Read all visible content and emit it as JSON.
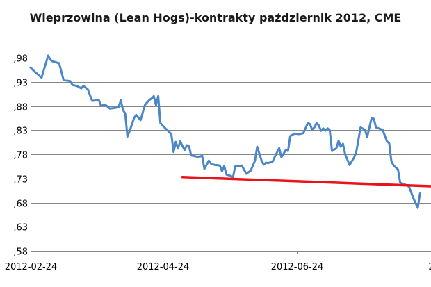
{
  "chart_data": {
    "type": "line",
    "title": "Wieprzowina (Lean Hogs)-kontrakty październik 2012, CME",
    "xlabel": "",
    "ylabel": "",
    "ylim": [
      0.58,
      1.005
    ],
    "y_ticks": [
      ",58",
      ",63",
      ",68",
      ",73",
      ",78",
      ",83",
      ",88",
      ",93",
      ",98"
    ],
    "y_tick_values": [
      0.58,
      0.63,
      0.68,
      0.73,
      0.78,
      0.83,
      0.88,
      0.93,
      0.98
    ],
    "x_ticks": [
      "2012-02-24",
      "2012-04-24",
      "2012-06-24",
      "2"
    ],
    "x_tick_days": [
      0,
      60,
      121,
      182
    ],
    "xlim_days": [
      0,
      182
    ],
    "grid": true,
    "legend": "none",
    "series": [
      {
        "color": "#4a86c8",
        "x_days": [
          0,
          2,
          5,
          8,
          9,
          10,
          13,
          15,
          18,
          19,
          21,
          23,
          24,
          26,
          28,
          30,
          31,
          32,
          34,
          36,
          38,
          40,
          41,
          42,
          43,
          44,
          45,
          47,
          48,
          50,
          52,
          53,
          54,
          55,
          56,
          57,
          58,
          59,
          61,
          62,
          64,
          65,
          66,
          67,
          68,
          70,
          71,
          72,
          73,
          75,
          76,
          78,
          79,
          81,
          82,
          83,
          84,
          86,
          87,
          88,
          89,
          90,
          92,
          93,
          95,
          96,
          98,
          100,
          102,
          103,
          105,
          106,
          107,
          108,
          110,
          111,
          113,
          114,
          116,
          117,
          118,
          120,
          122,
          124,
          126,
          127,
          128,
          129,
          130,
          131,
          132,
          133,
          134,
          135,
          136,
          137,
          139,
          140,
          141,
          142,
          143,
          145,
          147,
          148,
          150,
          152,
          153,
          155,
          156,
          157,
          160,
          162,
          163,
          164,
          165,
          167,
          168,
          170,
          172,
          174,
          176,
          177
        ],
        "values": [
          0.96,
          0.951,
          0.939,
          0.985,
          0.976,
          0.973,
          0.969,
          0.934,
          0.932,
          0.924,
          0.922,
          0.917,
          0.922,
          0.915,
          0.891,
          0.892,
          0.893,
          0.881,
          0.883,
          0.875,
          0.876,
          0.878,
          0.892,
          0.872,
          0.865,
          0.817,
          0.828,
          0.855,
          0.862,
          0.851,
          0.883,
          0.888,
          0.893,
          0.896,
          0.901,
          0.882,
          0.901,
          0.845,
          0.835,
          0.831,
          0.822,
          0.785,
          0.806,
          0.792,
          0.807,
          0.789,
          0.799,
          0.797,
          0.778,
          0.776,
          0.775,
          0.777,
          0.75,
          0.767,
          0.761,
          0.759,
          0.758,
          0.757,
          0.745,
          0.756,
          0.738,
          0.737,
          0.733,
          0.755,
          0.756,
          0.757,
          0.74,
          0.746,
          0.767,
          0.796,
          0.767,
          0.759,
          0.763,
          0.762,
          0.765,
          0.775,
          0.793,
          0.774,
          0.789,
          0.787,
          0.818,
          0.823,
          0.822,
          0.824,
          0.845,
          0.843,
          0.831,
          0.836,
          0.845,
          0.84,
          0.829,
          0.834,
          0.829,
          0.834,
          0.83,
          0.787,
          0.793,
          0.808,
          0.796,
          0.802,
          0.78,
          0.758,
          0.773,
          0.784,
          0.836,
          0.831,
          0.816,
          0.855,
          0.854,
          0.836,
          0.831,
          0.807,
          0.803,
          0.766,
          0.757,
          0.749,
          0.721,
          0.718,
          0.713,
          0.689,
          0.669,
          0.699
        ]
      },
      {
        "color": "#e8141a",
        "x_days": [
          69,
          182
        ],
        "values": [
          0.733,
          0.714
        ]
      }
    ]
  }
}
